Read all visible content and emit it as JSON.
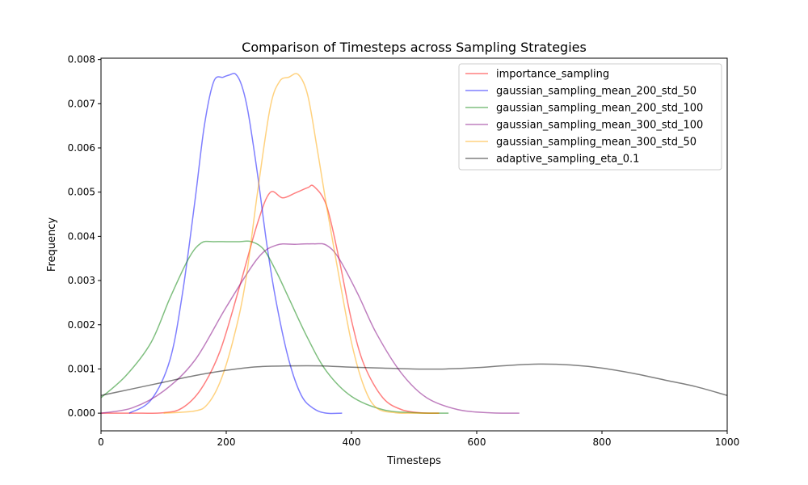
{
  "chart_data": {
    "type": "line",
    "title": "Comparison of Timesteps across Sampling Strategies",
    "xlabel": "Timesteps",
    "ylabel": "Frequency",
    "xlim": [
      0,
      1000
    ],
    "ylim": [
      -0.0004,
      0.00803
    ],
    "x_ticks": [
      0,
      200,
      400,
      600,
      800,
      1000
    ],
    "x_tick_labels": [
      "0",
      "200",
      "400",
      "600",
      "800",
      "1000"
    ],
    "y_ticks": [
      0.0,
      0.001,
      0.002,
      0.003,
      0.004,
      0.005,
      0.006,
      0.007,
      0.008
    ],
    "y_tick_labels": [
      "0.000",
      "0.001",
      "0.002",
      "0.003",
      "0.004",
      "0.005",
      "0.006",
      "0.007",
      "0.008"
    ],
    "grid": false,
    "legend_position": "top-right",
    "series": [
      {
        "name": "importance_sampling",
        "color": "#ff0000",
        "x": [
          0,
          50,
          100,
          130,
          160,
          190,
          220,
          250,
          270,
          290,
          310,
          330,
          340,
          360,
          380,
          400,
          420,
          450,
          480,
          510,
          540
        ],
        "y": [
          0.0,
          0.0,
          1e-05,
          0.00012,
          0.00055,
          0.0014,
          0.0028,
          0.0043,
          0.00499,
          0.00487,
          0.00498,
          0.0051,
          0.00513,
          0.0047,
          0.0035,
          0.0021,
          0.0011,
          0.00035,
          8e-05,
          1e-05,
          0.0
        ]
      },
      {
        "name": "gaussian_sampling_mean_200_std_50",
        "color": "#0000ff",
        "x": [
          45,
          80,
          110,
          130,
          150,
          165,
          180,
          195,
          205,
          215,
          225,
          235,
          250,
          265,
          280,
          300,
          320,
          340,
          360,
          385
        ],
        "y": [
          0.0,
          0.0003,
          0.0012,
          0.0027,
          0.0048,
          0.0065,
          0.0075,
          0.0076,
          0.00765,
          0.00767,
          0.0074,
          0.0068,
          0.0054,
          0.0038,
          0.0025,
          0.0012,
          0.0004,
          0.0001,
          0.0,
          0.0
        ]
      },
      {
        "name": "gaussian_sampling_mean_200_std_100",
        "color": "#008000",
        "x": [
          0,
          40,
          80,
          110,
          140,
          160,
          180,
          200,
          220,
          240,
          260,
          280,
          300,
          330,
          360,
          400,
          450,
          500,
          555
        ],
        "y": [
          0.00035,
          0.00085,
          0.0016,
          0.0026,
          0.0035,
          0.00385,
          0.00388,
          0.00388,
          0.00388,
          0.00388,
          0.0037,
          0.0032,
          0.0026,
          0.0017,
          0.00095,
          0.00038,
          8e-05,
          1e-05,
          0.0
        ]
      },
      {
        "name": "gaussian_sampling_mean_300_std_100",
        "color": "#800080",
        "x": [
          0,
          50,
          100,
          150,
          200,
          250,
          280,
          310,
          340,
          360,
          380,
          410,
          440,
          480,
          520,
          570,
          620,
          668
        ],
        "y": [
          0.0,
          0.00012,
          0.0005,
          0.0012,
          0.0024,
          0.0035,
          0.0038,
          0.00382,
          0.00383,
          0.0038,
          0.0035,
          0.0027,
          0.0018,
          0.0009,
          0.00035,
          8e-05,
          1e-05,
          0.0
        ]
      },
      {
        "name": "gaussian_sampling_mean_300_std_50",
        "color": "#ffa500",
        "x": [
          100,
          150,
          170,
          190,
          210,
          230,
          250,
          270,
          285,
          300,
          315,
          330,
          345,
          360,
          380,
          400,
          420,
          440,
          470,
          500,
          540
        ],
        "y": [
          0.0,
          5e-05,
          0.0002,
          0.0007,
          0.0016,
          0.0029,
          0.005,
          0.0069,
          0.0075,
          0.0076,
          0.00766,
          0.0072,
          0.006,
          0.0047,
          0.0031,
          0.0016,
          0.0006,
          0.00012,
          1e-05,
          0.0,
          0.0
        ]
      },
      {
        "name": "adaptive_sampling_eta_0.1",
        "color": "#000000",
        "x": [
          0,
          50,
          100,
          150,
          200,
          250,
          300,
          350,
          400,
          450,
          500,
          550,
          600,
          650,
          700,
          750,
          800,
          850,
          900,
          950,
          1000
        ],
        "y": [
          0.0004,
          0.00055,
          0.0007,
          0.00085,
          0.00097,
          0.00105,
          0.00107,
          0.00107,
          0.00104,
          0.00102,
          0.001,
          0.001,
          0.00103,
          0.00108,
          0.00111,
          0.00109,
          0.00102,
          0.0009,
          0.00075,
          0.0006,
          0.0004
        ]
      }
    ]
  }
}
